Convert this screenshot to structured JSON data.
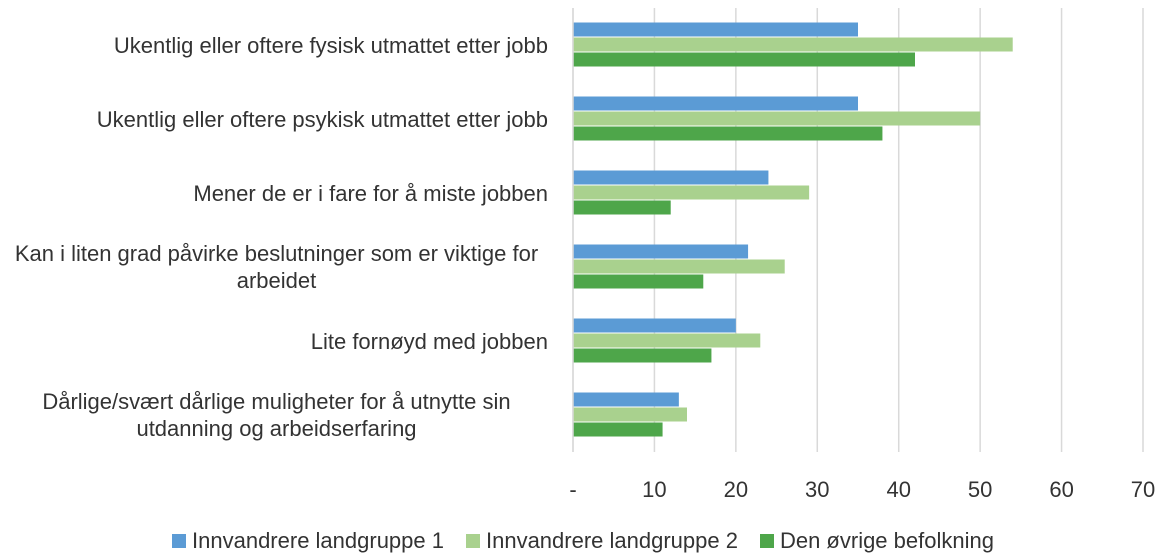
{
  "chart_data": {
    "type": "bar",
    "orientation": "horizontal",
    "categories": [
      "Ukentlig eller oftere fysisk utmattet etter jobb",
      "Ukentlig eller oftere psykisk utmattet etter jobb",
      "Mener de er i fare for å miste jobben",
      "Kan i liten grad påvirke beslutninger som er viktige for arbeidet",
      "Lite fornøyd med jobben",
      "Dårlige/svært dårlige muligheter for å utnytte sin utdanning og arbeidserfaring"
    ],
    "series": [
      {
        "name": "Innvandrere landgruppe 1",
        "color": "#5b9bd5",
        "values": [
          35,
          35,
          24,
          21.5,
          20,
          13
        ]
      },
      {
        "name": "Innvandrere landgruppe 2",
        "color": "#a9d18e",
        "values": [
          54,
          50,
          29,
          26,
          23,
          14
        ]
      },
      {
        "name": "Den øvrige befolkning",
        "color": "#4ea64a",
        "values": [
          42,
          38,
          12,
          16,
          17,
          11
        ]
      }
    ],
    "xlim": [
      0,
      70
    ],
    "xticks": [
      {
        "value": 0,
        "label": "-"
      },
      10,
      20,
      30,
      40,
      50,
      60,
      70
    ],
    "grid": true,
    "legend": "bottom"
  }
}
